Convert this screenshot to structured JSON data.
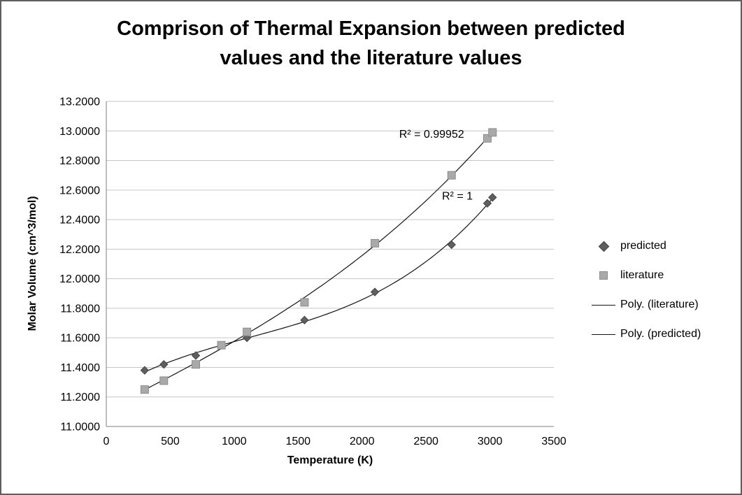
{
  "frame": {
    "background": "#ffffff",
    "border_color": "#5e5e5e"
  },
  "title": {
    "lines": [
      "Comprison of Thermal Expansion between predicted",
      "values and the literature values"
    ]
  },
  "chart_data": {
    "type": "scatter",
    "title": "Comprison of Thermal Expansion between predicted values and the literature values",
    "xlabel": "Temperature (K)",
    "ylabel": "Molar Volume (cm^3/mol)",
    "xlim": [
      0,
      3500
    ],
    "ylim": [
      11.0,
      13.2
    ],
    "xticks": [
      0,
      500,
      1000,
      1500,
      2000,
      2500,
      3000,
      3500
    ],
    "ytick_values": [
      11.0,
      11.2,
      11.4,
      11.6,
      11.8,
      12.0,
      12.2,
      12.4,
      12.6,
      12.8,
      13.0,
      13.2
    ],
    "ytick_labels": [
      "11.0000",
      "11.2000",
      "11.4000",
      "11.6000",
      "11.8000",
      "12.0000",
      "12.2000",
      "12.4000",
      "12.6000",
      "12.8000",
      "13.0000",
      "13.2000"
    ],
    "grid": true,
    "legend_position": "right",
    "colors": {
      "gridline": "#c6c6c6",
      "axis": "#7f7f7f",
      "predicted_fill": "#5f5f5f",
      "predicted_border": "#454545",
      "literature_fill": "#a9a9a9",
      "literature_border": "#8c8c8c",
      "trendline": "#141414",
      "text": "#000000"
    },
    "series": [
      {
        "name": "predicted",
        "marker": "diamond",
        "points": [
          [
            300,
            11.38
          ],
          [
            450,
            11.42
          ],
          [
            700,
            11.48
          ],
          [
            1100,
            11.6
          ],
          [
            1550,
            11.72
          ],
          [
            2100,
            11.91
          ],
          [
            2700,
            12.23
          ],
          [
            2980,
            12.51
          ],
          [
            3020,
            12.55
          ]
        ]
      },
      {
        "name": "literature",
        "marker": "square",
        "points": [
          [
            300,
            11.25
          ],
          [
            450,
            11.31
          ],
          [
            700,
            11.42
          ],
          [
            900,
            11.55
          ],
          [
            1100,
            11.64
          ],
          [
            1550,
            11.84
          ],
          [
            2100,
            12.24
          ],
          [
            2700,
            12.7
          ],
          [
            2980,
            12.95
          ],
          [
            3020,
            12.99
          ]
        ]
      }
    ],
    "trendlines": [
      {
        "label": "Poly. (literature)",
        "series": "literature",
        "degree": 3
      },
      {
        "label": "Poly. (predicted)",
        "series": "predicted",
        "degree": 3
      }
    ],
    "annotations": [
      {
        "text": "R² = 0.99952",
        "x": 2290,
        "y": 12.955
      },
      {
        "text": "R² = 1",
        "x": 2625,
        "y": 12.535
      }
    ],
    "legend": {
      "items": [
        {
          "label": "predicted",
          "swatch": "diamond"
        },
        {
          "label": "literature",
          "swatch": "square"
        },
        {
          "label": "Poly. (literature)",
          "swatch": "line"
        },
        {
          "label": "Poly. (predicted)",
          "swatch": "line"
        }
      ]
    }
  }
}
